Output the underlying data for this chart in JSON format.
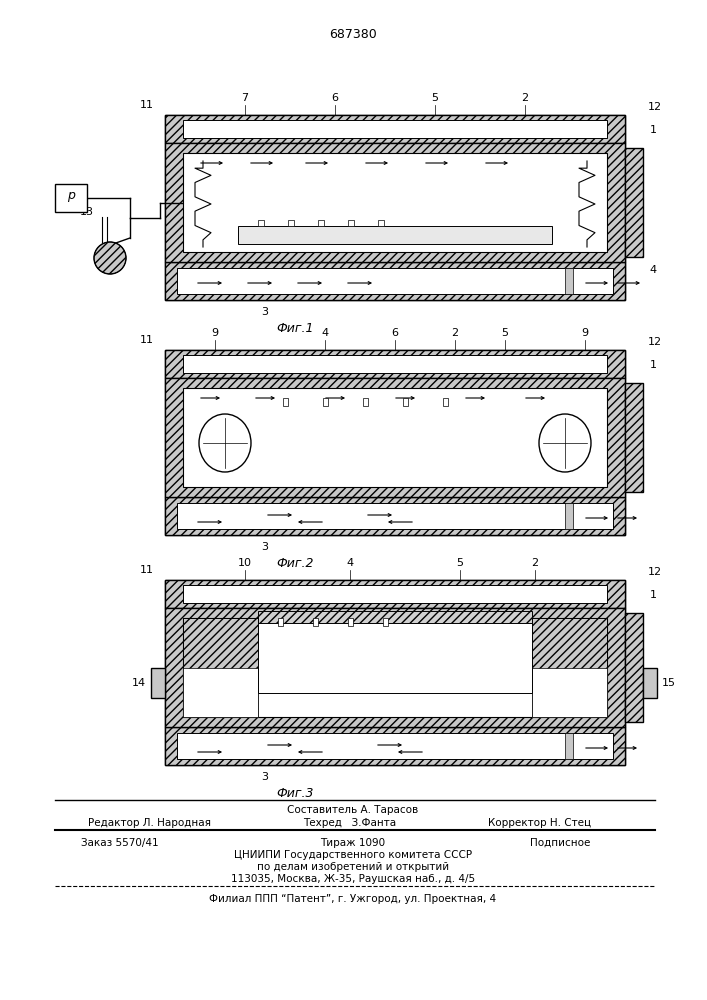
{
  "patent_number": "687380",
  "bg_color": "#ffffff",
  "line_color": "#000000",
  "fig_labels": [
    "Фиг.1",
    "Фиг.2",
    "Фиг.3"
  ],
  "footer_line1": "Составитель А. Тарасов",
  "footer_line2_left": "Редактор Л. Народная",
  "footer_line2_mid": "Техред   З.Фанта",
  "footer_line2_right": "Корректор Н. Стец",
  "footer_line3_left": "Заказ 5570/41",
  "footer_line3_mid": "Тираж 1090",
  "footer_line3_right": "Подписное",
  "footer_line4": "ЦНИИПИ Государственного комитета СССР",
  "footer_line5": "по делам изобретений и открытий",
  "footer_line6": "113035, Москва, Ж-35, Раушская наб., д. 4/5",
  "footer_line7": "Филиал ППП “Патент”, г. Ужгород, ул. Проектная, 4"
}
